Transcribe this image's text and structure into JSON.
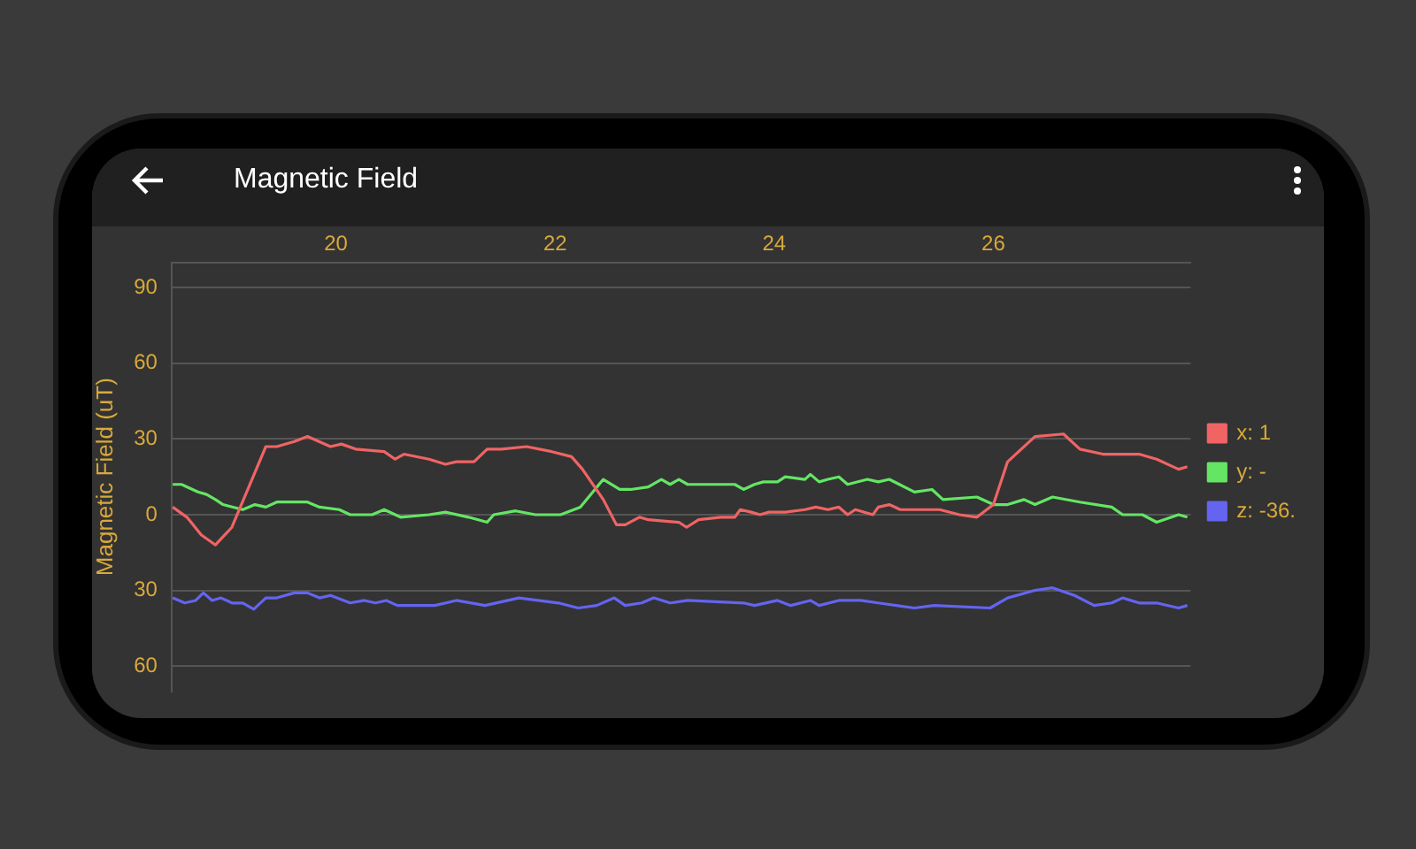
{
  "chart_data": {
    "type": "line",
    "title": "Magnetic Field",
    "ylabel": "Magnetic Field (uT)",
    "xlim": [
      18.5,
      27.8
    ],
    "xticks": [
      20,
      22,
      24,
      26
    ],
    "ylim": [
      -70,
      100
    ],
    "yticks": [
      {
        "value": -60,
        "label": "60"
      },
      {
        "value": -30,
        "label": "30"
      },
      0,
      30,
      60,
      90
    ],
    "grid": "y",
    "legend": "right",
    "marker": "none",
    "line_style": "solid",
    "series": [
      {
        "name": "x: 1",
        "color": "#f06464",
        "x": [
          18.51,
          18.64,
          18.77,
          18.9,
          19.05,
          19.36,
          19.46,
          19.62,
          19.74,
          19.95,
          20.05,
          20.18,
          20.44,
          20.54,
          20.62,
          20.85,
          21,
          21.1,
          21.26,
          21.38,
          21.51,
          21.74,
          21.97,
          22.15,
          22.25,
          22.44,
          22.56,
          22.64,
          22.77,
          22.85,
          23.13,
          23.2,
          23.31,
          23.51,
          23.64,
          23.69,
          23.79,
          23.87,
          23.95,
          24.1,
          24.28,
          24.38,
          24.49,
          24.59,
          24.67,
          24.74,
          24.9,
          24.95,
          25.05,
          25.15,
          25.51,
          25.69,
          25.85,
          26,
          26.13,
          26.38,
          26.64,
          26.79,
          27,
          27.21,
          27.33,
          27.49,
          27.69,
          27.77
        ],
        "values": [
          3,
          -1,
          -8,
          -12,
          -5,
          27,
          27,
          29,
          31,
          27,
          28,
          26,
          25,
          22,
          24,
          22,
          20,
          21,
          21,
          26,
          26,
          27,
          25,
          23,
          18,
          6,
          -4,
          -4,
          -1,
          -2,
          -3,
          -5,
          -2,
          -1,
          -1,
          2,
          1,
          0,
          1,
          1,
          2,
          3,
          2,
          3,
          0,
          2,
          0,
          3,
          4,
          2,
          2,
          0,
          -1,
          4,
          21,
          31,
          32,
          26,
          24,
          24,
          24,
          22,
          18,
          19
        ]
      },
      {
        "name": "y: -",
        "color": "#64e664",
        "x": [
          18.51,
          18.59,
          18.74,
          18.82,
          18.9,
          18.97,
          19.15,
          19.26,
          19.36,
          19.46,
          19.62,
          19.74,
          19.85,
          20.03,
          20.13,
          20.33,
          20.44,
          20.59,
          20.85,
          21,
          21.21,
          21.38,
          21.44,
          21.64,
          21.82,
          22.05,
          22.23,
          22.44,
          22.59,
          22.69,
          22.85,
          22.97,
          23.05,
          23.13,
          23.21,
          23.64,
          23.72,
          23.82,
          23.9,
          24.03,
          24.1,
          24.28,
          24.33,
          24.41,
          24.49,
          24.59,
          24.67,
          24.85,
          24.95,
          25.05,
          25.28,
          25.44,
          25.54,
          25.85,
          26,
          26.13,
          26.28,
          26.38,
          26.54,
          26.79,
          27.08,
          27.18,
          27.36,
          27.49,
          27.69,
          27.77
        ],
        "values": [
          12,
          12,
          9,
          8,
          6,
          4,
          2,
          4,
          3,
          5,
          5,
          5,
          3,
          2,
          0,
          0,
          2,
          -1,
          0,
          1,
          -1,
          -3,
          0,
          1.5,
          0,
          0,
          3,
          14,
          10,
          10,
          11,
          14,
          12,
          14,
          12,
          12,
          10,
          12,
          13,
          13,
          15,
          14,
          16,
          13,
          14,
          15,
          12,
          14,
          13,
          14,
          9,
          10,
          6,
          7,
          4,
          4,
          6,
          4,
          7,
          5,
          3,
          0,
          0,
          -3,
          0,
          -1
        ]
      },
      {
        "name": "z: -36.",
        "color": "#6464f0",
        "x": [
          18.51,
          18.62,
          18.72,
          18.79,
          18.87,
          18.95,
          19.05,
          19.15,
          19.25,
          19.36,
          19.46,
          19.62,
          19.74,
          19.85,
          19.95,
          20.13,
          20.26,
          20.36,
          20.46,
          20.56,
          20.9,
          21.1,
          21.36,
          21.67,
          22.03,
          22.21,
          22.38,
          22.54,
          22.64,
          22.79,
          22.9,
          23.05,
          23.21,
          23.72,
          23.82,
          24.03,
          24.15,
          24.33,
          24.41,
          24.59,
          24.79,
          24.95,
          25.28,
          25.46,
          25.97,
          26.13,
          26.38,
          26.54,
          26.74,
          26.92,
          27.08,
          27.18,
          27.33,
          27.49,
          27.69,
          27.77
        ],
        "values": [
          -33,
          -35,
          -34,
          -31,
          -34,
          -33,
          -35,
          -35,
          -37.5,
          -33,
          -33,
          -31,
          -31,
          -33,
          -32,
          -35,
          -34,
          -35,
          -34,
          -36,
          -36,
          -34,
          -36,
          -33,
          -35,
          -37,
          -36,
          -33,
          -36,
          -35,
          -33,
          -35,
          -34,
          -35,
          -36,
          -34,
          -36,
          -34,
          -36,
          -34,
          -34,
          -35,
          -37,
          -36,
          -37,
          -33,
          -30,
          -29,
          -32,
          -36,
          -35,
          -33,
          -35,
          -35,
          -37,
          -36
        ]
      }
    ]
  }
}
